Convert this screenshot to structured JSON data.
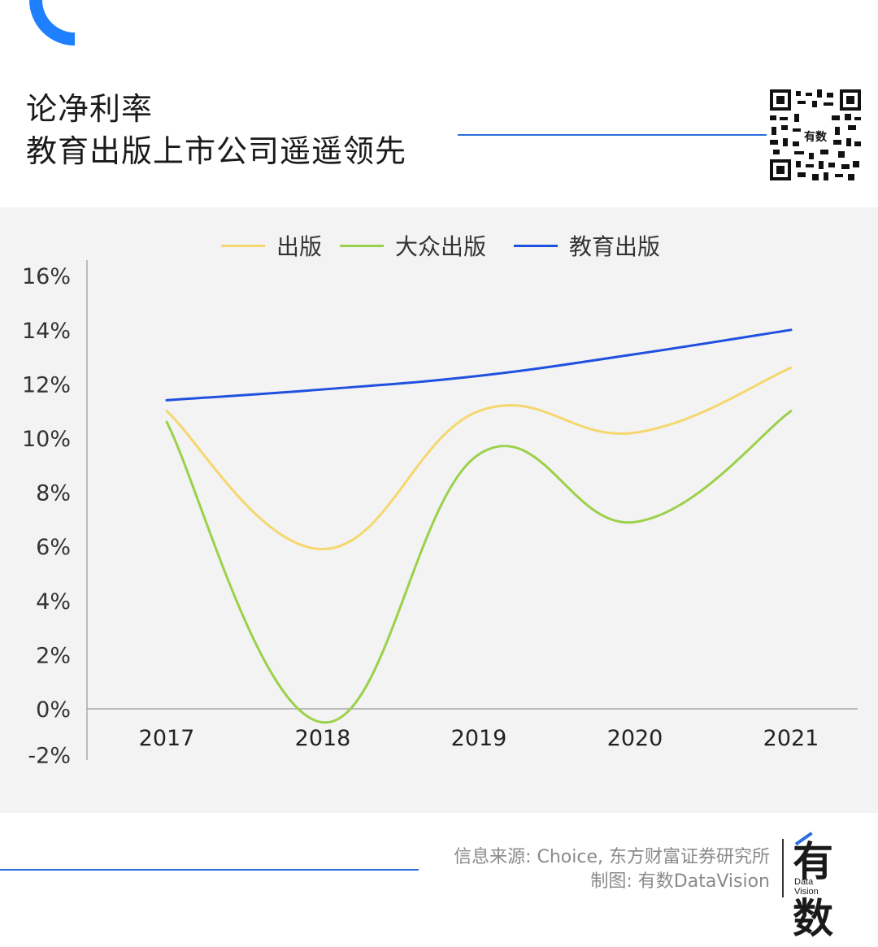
{
  "header": {
    "title_line1": "论净利率",
    "title_line2": "教育出版上市公司遥遥领先"
  },
  "colors": {
    "accent": "#2a6fdb",
    "series_publishing": "#f5d76e",
    "series_mass_publishing": "#9bd14a",
    "series_education_publishing": "#2050e0",
    "panel_bg": "#f3f3f3"
  },
  "chart_data": {
    "type": "line",
    "title": "",
    "xlabel": "",
    "ylabel": "",
    "categories": [
      "2017",
      "2018",
      "2019",
      "2020",
      "2021"
    ],
    "series": [
      {
        "name": "出版",
        "values": [
          11.0,
          5.9,
          11.0,
          10.2,
          12.6
        ]
      },
      {
        "name": "大众出版",
        "values": [
          10.6,
          -0.5,
          9.4,
          6.9,
          11.0
        ]
      },
      {
        "name": "教育出版",
        "values": [
          11.4,
          11.8,
          12.3,
          13.1,
          14.0
        ]
      }
    ],
    "yticks": [
      "16%",
      "14%",
      "12%",
      "10%",
      "8%",
      "6%",
      "4%",
      "2%",
      "0%",
      "-2%"
    ],
    "ylim": [
      -2,
      16
    ],
    "legend_position": "top-center",
    "grid": false
  },
  "footer": {
    "source_line1": "信息来源: Choice, 东方财富证券研究所",
    "source_line2": "制图: 有数DataVision",
    "logo_main": "有数",
    "logo_sub1": "Data",
    "logo_sub2": "Vision"
  },
  "icons": {
    "qr": "qr-code-icon",
    "corner": "corner-arc-icon"
  }
}
